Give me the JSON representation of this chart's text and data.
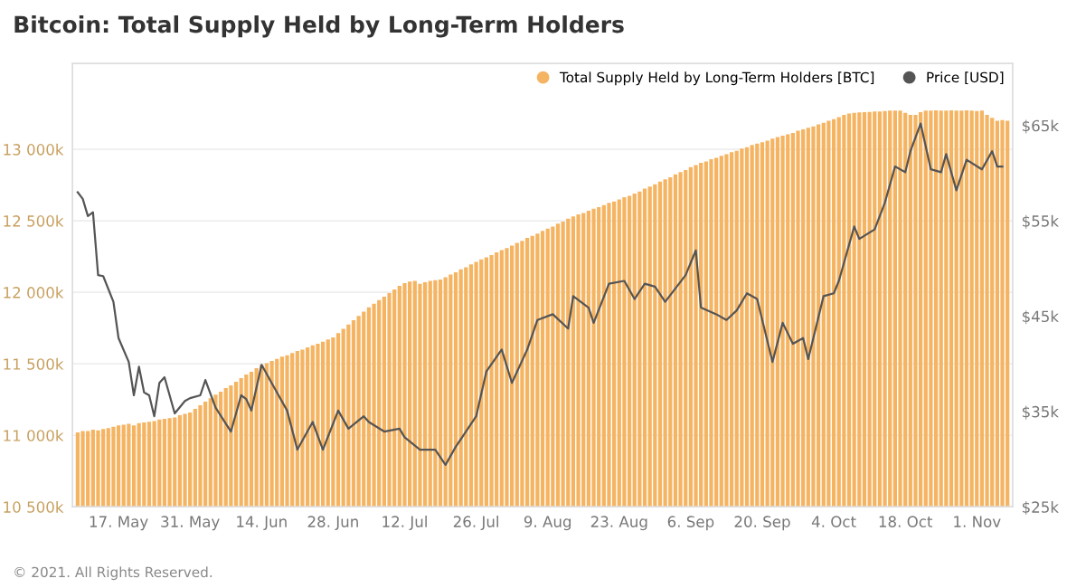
{
  "chart_data": {
    "type": "bar",
    "title": "Bitcoin: Total Supply Held by Long-Term Holders",
    "annotations": [
      "© 2021. All Rights Reserved."
    ],
    "x": [
      "2021-05-09",
      "2021-05-10",
      "2021-05-11",
      "2021-05-12",
      "2021-05-13",
      "2021-05-14",
      "2021-05-15",
      "2021-05-16",
      "2021-05-17",
      "2021-05-18",
      "2021-05-19",
      "2021-05-20",
      "2021-05-21",
      "2021-05-22",
      "2021-05-23",
      "2021-05-24",
      "2021-05-25",
      "2021-05-26",
      "2021-05-27",
      "2021-05-28",
      "2021-05-29",
      "2021-05-30",
      "2021-05-31",
      "2021-06-01",
      "2021-06-02",
      "2021-06-03",
      "2021-06-04",
      "2021-06-05",
      "2021-06-06",
      "2021-06-07",
      "2021-06-08",
      "2021-06-09",
      "2021-06-10",
      "2021-06-11",
      "2021-06-12",
      "2021-06-13",
      "2021-06-14",
      "2021-06-15",
      "2021-06-16",
      "2021-06-17",
      "2021-06-18",
      "2021-06-19",
      "2021-06-20",
      "2021-06-21",
      "2021-06-22",
      "2021-06-23",
      "2021-06-24",
      "2021-06-25",
      "2021-06-26",
      "2021-06-27",
      "2021-06-28",
      "2021-06-29",
      "2021-06-30",
      "2021-07-01",
      "2021-07-02",
      "2021-07-03",
      "2021-07-04",
      "2021-07-05",
      "2021-07-06",
      "2021-07-07",
      "2021-07-08",
      "2021-07-09",
      "2021-07-10",
      "2021-07-11",
      "2021-07-12",
      "2021-07-13",
      "2021-07-14",
      "2021-07-15",
      "2021-07-16",
      "2021-07-17",
      "2021-07-18",
      "2021-07-19",
      "2021-07-20",
      "2021-07-21",
      "2021-07-22",
      "2021-07-23",
      "2021-07-24",
      "2021-07-25",
      "2021-07-26",
      "2021-07-27",
      "2021-07-28",
      "2021-07-29",
      "2021-07-30",
      "2021-07-31",
      "2021-08-01",
      "2021-08-02",
      "2021-08-03",
      "2021-08-04",
      "2021-08-05",
      "2021-08-06",
      "2021-08-07",
      "2021-08-08",
      "2021-08-09",
      "2021-08-10",
      "2021-08-11",
      "2021-08-12",
      "2021-08-13",
      "2021-08-14",
      "2021-08-15",
      "2021-08-16",
      "2021-08-17",
      "2021-08-18",
      "2021-08-19",
      "2021-08-20",
      "2021-08-21",
      "2021-08-22",
      "2021-08-23",
      "2021-08-24",
      "2021-08-25",
      "2021-08-26",
      "2021-08-27",
      "2021-08-28",
      "2021-08-29",
      "2021-08-30",
      "2021-08-31",
      "2021-09-01",
      "2021-09-02",
      "2021-09-03",
      "2021-09-04",
      "2021-09-05",
      "2021-09-06",
      "2021-09-07",
      "2021-09-08",
      "2021-09-09",
      "2021-09-10",
      "2021-09-11",
      "2021-09-12",
      "2021-09-13",
      "2021-09-14",
      "2021-09-15",
      "2021-09-16",
      "2021-09-17",
      "2021-09-18",
      "2021-09-19",
      "2021-09-20",
      "2021-09-21",
      "2021-09-22",
      "2021-09-23",
      "2021-09-24",
      "2021-09-25",
      "2021-09-26",
      "2021-09-27",
      "2021-09-28",
      "2021-09-29",
      "2021-09-30",
      "2021-10-01",
      "2021-10-02",
      "2021-10-03",
      "2021-10-04",
      "2021-10-05",
      "2021-10-06",
      "2021-10-07",
      "2021-10-08",
      "2021-10-09",
      "2021-10-10",
      "2021-10-11",
      "2021-10-12",
      "2021-10-13",
      "2021-10-14",
      "2021-10-15",
      "2021-10-16",
      "2021-10-17",
      "2021-10-18",
      "2021-10-19",
      "2021-10-20",
      "2021-10-21",
      "2021-10-22",
      "2021-10-23",
      "2021-10-24",
      "2021-10-25",
      "2021-10-26",
      "2021-10-27",
      "2021-10-28",
      "2021-10-29",
      "2021-10-30",
      "2021-10-31",
      "2021-11-01",
      "2021-11-02",
      "2021-11-03",
      "2021-11-04",
      "2021-11-05",
      "2021-11-06",
      "2021-11-07"
    ],
    "series": [
      {
        "name": "Total Supply Held by Long-Term Holders [BTC]",
        "color": "#f5b462",
        "values": [
          11020,
          11030,
          11030,
          11040,
          11035,
          11045,
          11050,
          11060,
          11070,
          11075,
          11080,
          11070,
          11085,
          11090,
          11095,
          11100,
          11110,
          11115,
          11120,
          11125,
          11140,
          11150,
          11160,
          11185,
          11210,
          11235,
          11260,
          11285,
          11305,
          11330,
          11350,
          11375,
          11400,
          11425,
          11445,
          11470,
          11494,
          11505,
          11520,
          11535,
          11550,
          11560,
          11575,
          11590,
          11600,
          11615,
          11630,
          11640,
          11655,
          11670,
          11685,
          11715,
          11745,
          11775,
          11805,
          11835,
          11865,
          11895,
          11920,
          11945,
          11970,
          11995,
          12020,
          12045,
          12065,
          12075,
          12080,
          12060,
          12070,
          12080,
          12085,
          12090,
          12105,
          12125,
          12140,
          12160,
          12175,
          12195,
          12213,
          12230,
          12245,
          12260,
          12280,
          12295,
          12310,
          12327,
          12345,
          12360,
          12380,
          12395,
          12410,
          12430,
          12445,
          12460,
          12480,
          12495,
          12515,
          12530,
          12545,
          12555,
          12570,
          12585,
          12595,
          12610,
          12625,
          12635,
          12650,
          12665,
          12675,
          12690,
          12705,
          12725,
          12740,
          12755,
          12775,
          12790,
          12805,
          12825,
          12840,
          12855,
          12875,
          12890,
          12905,
          12915,
          12930,
          12940,
          12955,
          12965,
          12980,
          12990,
          13005,
          13015,
          13030,
          13040,
          13050,
          13060,
          13075,
          13085,
          13095,
          13105,
          13115,
          13130,
          13140,
          13150,
          13160,
          13174,
          13185,
          13200,
          13210,
          13225,
          13240,
          13250,
          13255,
          13258,
          13260,
          13262,
          13265,
          13265,
          13268,
          13270,
          13270,
          13270,
          13255,
          13240,
          13240,
          13260,
          13270,
          13270,
          13272,
          13270,
          13270,
          13272,
          13270,
          13270,
          13272,
          13270,
          13268,
          13270,
          13240,
          13220,
          13200,
          13205,
          13200
        ]
      },
      {
        "name": "Price [USD]",
        "type": "line",
        "axis": "y2",
        "color": "#555555",
        "x": [
          "2021-05-09",
          "2021-05-10",
          "2021-05-11",
          "2021-05-12",
          "2021-05-13",
          "2021-05-14",
          "2021-05-16",
          "2021-05-17",
          "2021-05-19",
          "2021-05-20",
          "2021-05-21",
          "2021-05-22",
          "2021-05-23",
          "2021-05-24",
          "2021-05-25",
          "2021-05-26",
          "2021-05-28",
          "2021-05-30",
          "2021-05-31",
          "2021-06-02",
          "2021-06-03",
          "2021-06-05",
          "2021-06-08",
          "2021-06-10",
          "2021-06-11",
          "2021-06-12",
          "2021-06-14",
          "2021-06-17",
          "2021-06-19",
          "2021-06-21",
          "2021-06-24",
          "2021-06-26",
          "2021-06-29",
          "2021-07-01",
          "2021-07-04",
          "2021-07-05",
          "2021-07-08",
          "2021-07-11",
          "2021-07-12",
          "2021-07-15",
          "2021-07-18",
          "2021-07-20",
          "2021-07-22",
          "2021-07-26",
          "2021-07-28",
          "2021-07-31",
          "2021-08-02",
          "2021-08-05",
          "2021-08-07",
          "2021-08-10",
          "2021-08-13",
          "2021-08-14",
          "2021-08-17",
          "2021-08-18",
          "2021-08-21",
          "2021-08-24",
          "2021-08-26",
          "2021-08-28",
          "2021-08-30",
          "2021-09-01",
          "2021-09-05",
          "2021-09-07",
          "2021-09-08",
          "2021-09-11",
          "2021-09-13",
          "2021-09-15",
          "2021-09-17",
          "2021-09-19",
          "2021-09-22",
          "2021-09-24",
          "2021-09-26",
          "2021-09-28",
          "2021-09-29",
          "2021-10-02",
          "2021-10-04",
          "2021-10-05",
          "2021-10-08",
          "2021-10-09",
          "2021-10-12",
          "2021-10-14",
          "2021-10-16",
          "2021-10-18",
          "2021-10-19",
          "2021-10-21",
          "2021-10-23",
          "2021-10-25",
          "2021-10-26",
          "2021-10-28",
          "2021-10-30",
          "2021-11-02",
          "2021-11-04",
          "2021-11-05",
          "2021-11-06"
        ],
        "values": [
          58.0,
          57.3,
          55.5,
          55.9,
          49.3,
          49.2,
          46.5,
          42.7,
          40.2,
          36.7,
          39.7,
          37.0,
          36.7,
          34.5,
          38.0,
          38.6,
          34.8,
          36.1,
          36.4,
          36.7,
          38.3,
          35.4,
          32.9,
          36.7,
          36.3,
          35.1,
          39.9,
          37.0,
          35.1,
          31.0,
          33.9,
          31.0,
          35.1,
          33.2,
          34.5,
          33.9,
          32.9,
          33.2,
          32.3,
          31.0,
          31.0,
          29.4,
          31.3,
          34.5,
          39.2,
          41.5,
          38.0,
          41.5,
          44.6,
          45.2,
          43.7,
          47.1,
          45.9,
          44.3,
          48.4,
          48.7,
          46.8,
          48.4,
          48.1,
          46.5,
          49.3,
          51.9,
          45.9,
          45.2,
          44.6,
          45.6,
          47.4,
          46.8,
          40.2,
          44.3,
          42.1,
          42.7,
          40.5,
          47.1,
          47.4,
          48.7,
          54.4,
          53.1,
          54.1,
          56.9,
          60.7,
          60.1,
          62.3,
          65.2,
          60.4,
          60.1,
          62.0,
          58.2,
          61.4,
          60.4,
          62.3,
          60.7,
          60.7
        ]
      }
    ],
    "xlim": [
      "2021-05-08",
      "2021-11-08"
    ],
    "xticks": [
      {
        "value": "2021-05-17",
        "label": "17. May"
      },
      {
        "value": "2021-05-31",
        "label": "31. May"
      },
      {
        "value": "2021-06-14",
        "label": "14. Jun"
      },
      {
        "value": "2021-06-28",
        "label": "28. Jun"
      },
      {
        "value": "2021-07-12",
        "label": "12. Jul"
      },
      {
        "value": "2021-07-26",
        "label": "26. Jul"
      },
      {
        "value": "2021-08-09",
        "label": "9. Aug"
      },
      {
        "value": "2021-08-23",
        "label": "23. Aug"
      },
      {
        "value": "2021-09-06",
        "label": "6. Sep"
      },
      {
        "value": "2021-09-20",
        "label": "20. Sep"
      },
      {
        "value": "2021-10-04",
        "label": "4. Oct"
      },
      {
        "value": "2021-10-18",
        "label": "18. Oct"
      },
      {
        "value": "2021-11-01",
        "label": "1. Nov"
      }
    ],
    "ylim": [
      10500,
      13600
    ],
    "yticks": [
      {
        "value": 10500,
        "label": "10 500k"
      },
      {
        "value": 11000,
        "label": "11 000k"
      },
      {
        "value": 11500,
        "label": "11 500k"
      },
      {
        "value": 12000,
        "label": "12 000k"
      },
      {
        "value": 12500,
        "label": "12 500k"
      },
      {
        "value": 13000,
        "label": "13 000k"
      }
    ],
    "y2lim": [
      25,
      71.5
    ],
    "y2ticks": [
      {
        "value": 25,
        "label": "$25k"
      },
      {
        "value": 35,
        "label": "$35k"
      },
      {
        "value": 45,
        "label": "$45k"
      },
      {
        "value": 55,
        "label": "$55k"
      },
      {
        "value": 65,
        "label": "$65k"
      }
    ],
    "grid": "y",
    "legend": "top right"
  }
}
